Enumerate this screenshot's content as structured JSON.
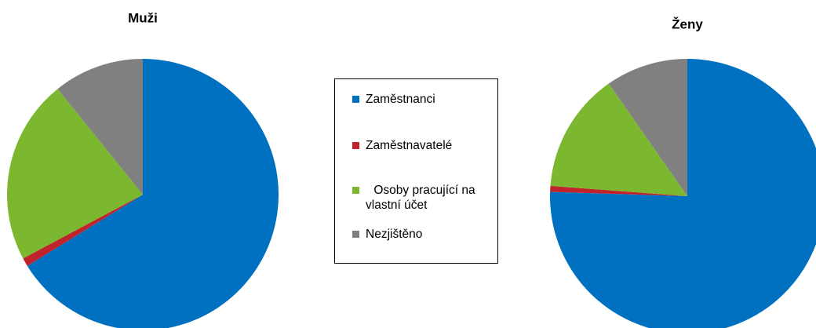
{
  "chart_data": {
    "type": "pie",
    "categories": [
      "Zaměstnanci",
      "Zaměstnavatelé",
      "Osoby pracující na vlastní účet",
      "Nezjištěno"
    ],
    "colors": [
      "#0070c0",
      "#c0232c",
      "#7cb82f",
      "#808080"
    ],
    "series": [
      {
        "name": "Muži",
        "values": [
          66.2,
          1.0,
          22.0,
          10.8
        ]
      },
      {
        "name": "Ženy",
        "values": [
          75.5,
          0.7,
          14.1,
          9.7
        ]
      }
    ]
  }
}
